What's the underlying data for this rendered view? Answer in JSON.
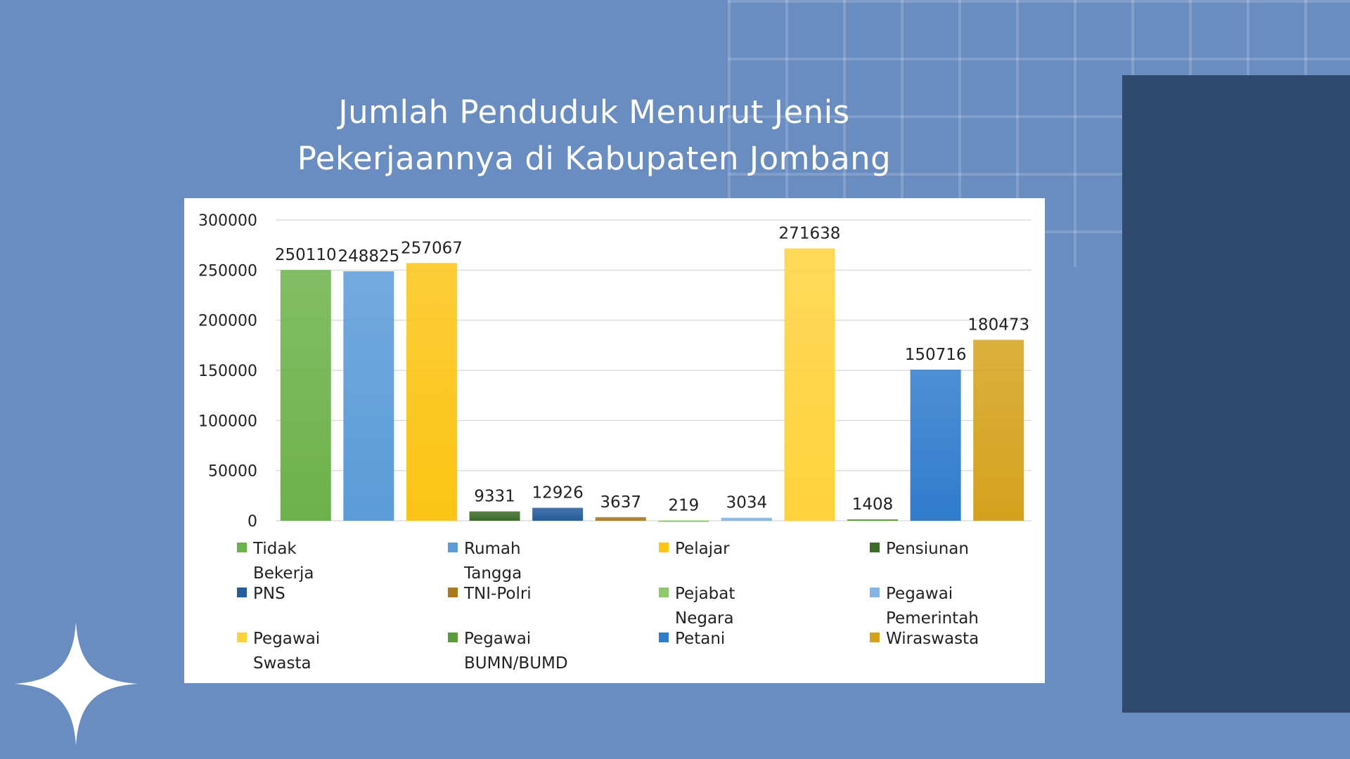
{
  "page": {
    "title_line1": "Jumlah Penduduk Menurut Jenis",
    "title_line2": "Pekerjaannya di Kabupaten Jombang"
  },
  "colors": {
    "background": "#6a8dc1",
    "dark_panel": "#2f4a6e",
    "card": "#ffffff"
  },
  "chart_data": {
    "type": "bar",
    "categories": [
      "Tidak Bekerja",
      "Rumah Tangga",
      "Pelajar",
      "Pensiunan",
      "PNS",
      "TNI-Polri",
      "Pejabat Negara",
      "Pegawai Pemerintah",
      "Pegawai Swasta",
      "Pegawai BUMN/BUMD",
      "Petani",
      "Wiraswasta"
    ],
    "series": [
      {
        "values": [
          250110,
          248825,
          257067,
          9331,
          12926,
          3637,
          219,
          3034,
          271638,
          1408,
          150716,
          180473
        ],
        "colors": [
          "#6cb24a",
          "#5b9bd8",
          "#fcc414",
          "#3d6b2a",
          "#255c9c",
          "#a97b1a",
          "#8fca6a",
          "#86b4e4",
          "#ffd23c",
          "#5b9a3a",
          "#2f7ccc",
          "#d4a21c"
        ]
      }
    ],
    "data_labels": [
      "250110",
      "248825",
      "257067",
      "9331",
      "12926",
      "3637",
      "219",
      "3034",
      "271638",
      "1408",
      "150716",
      "180473"
    ],
    "yticks": [
      "0",
      "50000",
      "100000",
      "150000",
      "200000",
      "250000",
      "300000"
    ],
    "ylim": [
      0,
      300000
    ],
    "grid": true,
    "legend_position": "bottom",
    "legend": [
      {
        "label": "Tidak Bekerja",
        "color": "#6cb24a"
      },
      {
        "label": "Rumah Tangga",
        "color": "#5b9bd8"
      },
      {
        "label": "Pelajar",
        "color": "#fcc414"
      },
      {
        "label": "Pensiunan",
        "color": "#3d6b2a"
      },
      {
        "label": "PNS",
        "color": "#255c9c"
      },
      {
        "label": "TNI-Polri",
        "color": "#a97b1a"
      },
      {
        "label": "Pejabat Negara",
        "color": "#8fca6a"
      },
      {
        "label": "Pegawai Pemerintah",
        "color": "#86b4e4"
      },
      {
        "label": "Pegawai Swasta",
        "color": "#ffd23c"
      },
      {
        "label": "Pegawai BUMN/BUMD",
        "color": "#5b9a3a"
      },
      {
        "label": "Petani",
        "color": "#2f7ccc"
      },
      {
        "label": "Wiraswasta",
        "color": "#d4a21c"
      }
    ]
  }
}
